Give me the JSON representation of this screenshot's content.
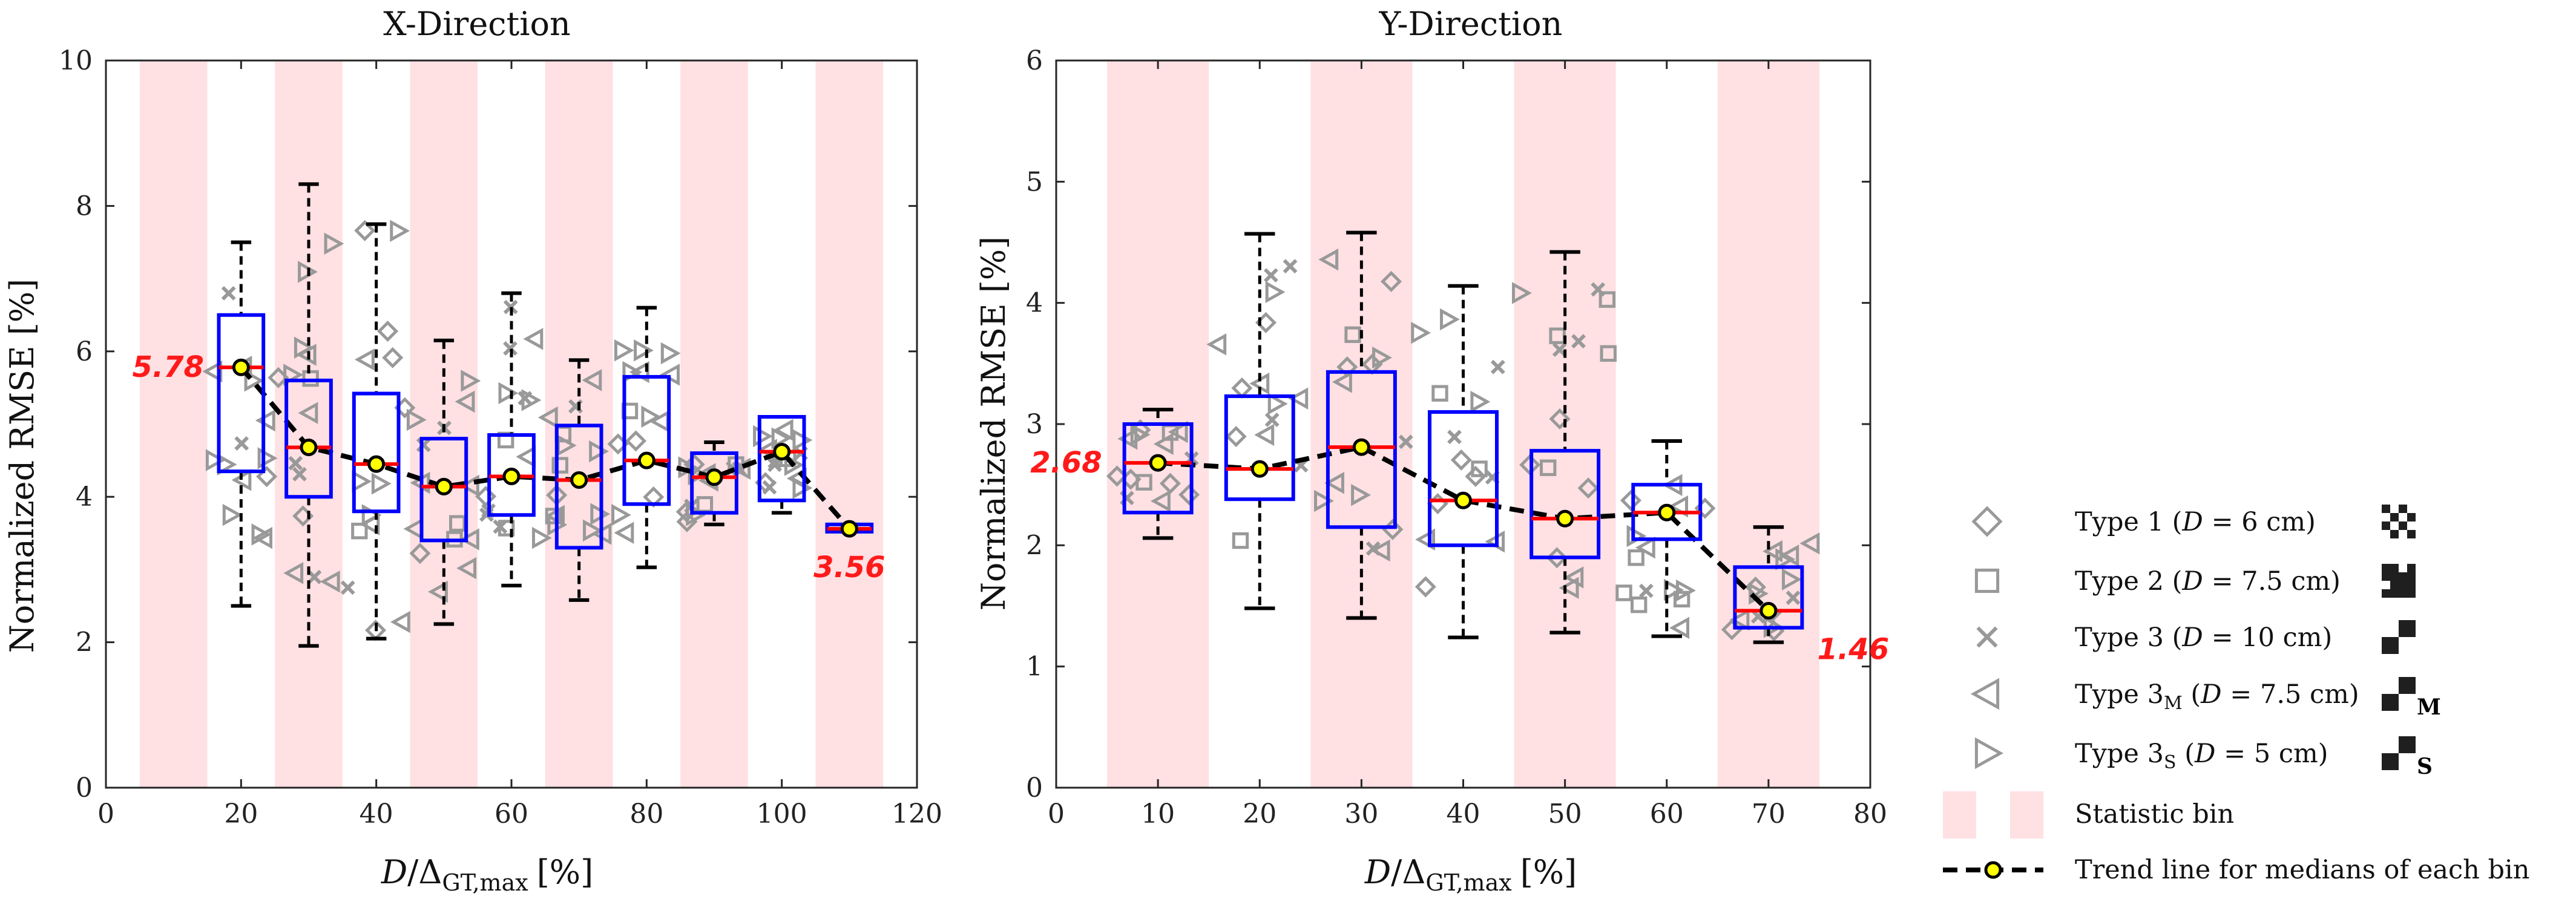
{
  "chart_data": [
    {
      "type": "box",
      "title": "X-Direction",
      "xlabel_parts": [
        "D",
        "/Δ",
        "GT,max",
        "[%]"
      ],
      "ylabel": "Normalized RMSE [%]",
      "xlim": [
        0,
        120
      ],
      "ylim": [
        0,
        10
      ],
      "xticks": [
        0,
        20,
        40,
        60,
        80,
        100,
        120
      ],
      "yticks": [
        0,
        2,
        4,
        6,
        8,
        10
      ],
      "bins": [
        [
          5,
          15
        ],
        [
          25,
          35
        ],
        [
          45,
          55
        ],
        [
          65,
          75
        ],
        [
          85,
          95
        ],
        [
          105,
          115
        ]
      ],
      "boxes": [
        {
          "x": 20,
          "q1": 4.35,
          "median": 5.78,
          "q3": 6.5,
          "wlo": 2.5,
          "whi": 7.5
        },
        {
          "x": 30,
          "q1": 4.0,
          "median": 4.68,
          "q3": 5.6,
          "wlo": 1.95,
          "whi": 8.3
        },
        {
          "x": 40,
          "q1": 3.8,
          "median": 4.45,
          "q3": 5.42,
          "wlo": 2.05,
          "whi": 7.75
        },
        {
          "x": 50,
          "q1": 3.4,
          "median": 4.14,
          "q3": 4.8,
          "wlo": 2.25,
          "whi": 6.15
        },
        {
          "x": 60,
          "q1": 3.75,
          "median": 4.28,
          "q3": 4.85,
          "wlo": 2.78,
          "whi": 6.8
        },
        {
          "x": 70,
          "q1": 3.3,
          "median": 4.23,
          "q3": 4.98,
          "wlo": 2.58,
          "whi": 5.88
        },
        {
          "x": 80,
          "q1": 3.9,
          "median": 4.5,
          "q3": 5.65,
          "wlo": 3.03,
          "whi": 6.6
        },
        {
          "x": 90,
          "q1": 3.78,
          "median": 4.27,
          "q3": 4.6,
          "wlo": 3.62,
          "whi": 4.75
        },
        {
          "x": 100,
          "q1": 3.95,
          "median": 4.62,
          "q3": 5.1,
          "wlo": 3.78,
          "whi": 5.1
        },
        {
          "x": 110,
          "q1": 3.52,
          "median": 3.56,
          "q3": 3.62,
          "wlo": 3.52,
          "whi": 3.62
        }
      ],
      "annotations": [
        {
          "text": "5.78",
          "x": 20,
          "y": 5.78,
          "side": "left"
        },
        {
          "text": "3.56",
          "x": 110,
          "y": 3.56,
          "side": "below"
        }
      ]
    },
    {
      "type": "box",
      "title": "Y-Direction",
      "xlabel_parts": [
        "D",
        "/Δ",
        "GT,max",
        "[%]"
      ],
      "ylabel": "Normalized RMSE [%]",
      "xlim": [
        0,
        80
      ],
      "ylim": [
        0,
        6
      ],
      "xticks": [
        0,
        10,
        20,
        30,
        40,
        50,
        60,
        70,
        80
      ],
      "yticks": [
        0,
        1,
        2,
        3,
        4,
        5,
        6
      ],
      "bins": [
        [
          5,
          15
        ],
        [
          25,
          35
        ],
        [
          45,
          55
        ],
        [
          65,
          75
        ]
      ],
      "boxes": [
        {
          "x": 10,
          "q1": 2.27,
          "median": 2.68,
          "q3": 3.0,
          "wlo": 2.06,
          "whi": 3.12
        },
        {
          "x": 20,
          "q1": 2.38,
          "median": 2.63,
          "q3": 3.23,
          "wlo": 1.48,
          "whi": 4.57
        },
        {
          "x": 30,
          "q1": 2.15,
          "median": 2.81,
          "q3": 3.43,
          "wlo": 1.4,
          "whi": 4.58
        },
        {
          "x": 40,
          "q1": 2.0,
          "median": 2.37,
          "q3": 3.1,
          "wlo": 1.24,
          "whi": 4.14
        },
        {
          "x": 50,
          "q1": 1.9,
          "median": 2.22,
          "q3": 2.78,
          "wlo": 1.28,
          "whi": 4.42
        },
        {
          "x": 60,
          "q1": 2.05,
          "median": 2.27,
          "q3": 2.5,
          "wlo": 1.25,
          "whi": 2.86
        },
        {
          "x": 70,
          "q1": 1.32,
          "median": 1.46,
          "q3": 1.82,
          "wlo": 1.2,
          "whi": 2.15
        }
      ],
      "annotations": [
        {
          "text": "2.68",
          "x": 10,
          "y": 2.68,
          "side": "left"
        },
        {
          "text": "1.46",
          "x": 70,
          "y": 1.46,
          "side": "below-right"
        }
      ]
    }
  ],
  "legend": {
    "types": [
      {
        "marker": "diamond",
        "label_pre": "Type 1 (",
        "label_var": "D",
        "label_post": " = 6 cm)",
        "sub": ""
      },
      {
        "marker": "square",
        "label_pre": "Type 2 (",
        "label_var": "D",
        "label_post": " = 7.5 cm)",
        "sub": ""
      },
      {
        "marker": "cross",
        "label_pre": "Type 3 (",
        "label_var": "D",
        "label_post": " = 10 cm)",
        "sub": ""
      },
      {
        "marker": "tri-left",
        "label_pre": "Type 3",
        "label_sub": "M",
        "label_var": "D",
        "label_post": " = 7.5 cm)",
        "sub": "M"
      },
      {
        "marker": "tri-right",
        "label_pre": "Type 3",
        "label_sub": "S",
        "label_var": "D",
        "label_post": " = 5 cm)",
        "sub": "S"
      }
    ],
    "bin_label": "Statistic bin",
    "trend_label": "Trend line for medians of each bin"
  },
  "colors": {
    "bin": "#ffe0e3",
    "box": "#0000ff",
    "median": "#ff0000",
    "trend": "#000000",
    "trend_marker": "#ffff00",
    "scatter": "#999999",
    "annotation": "#ff1a1a"
  }
}
